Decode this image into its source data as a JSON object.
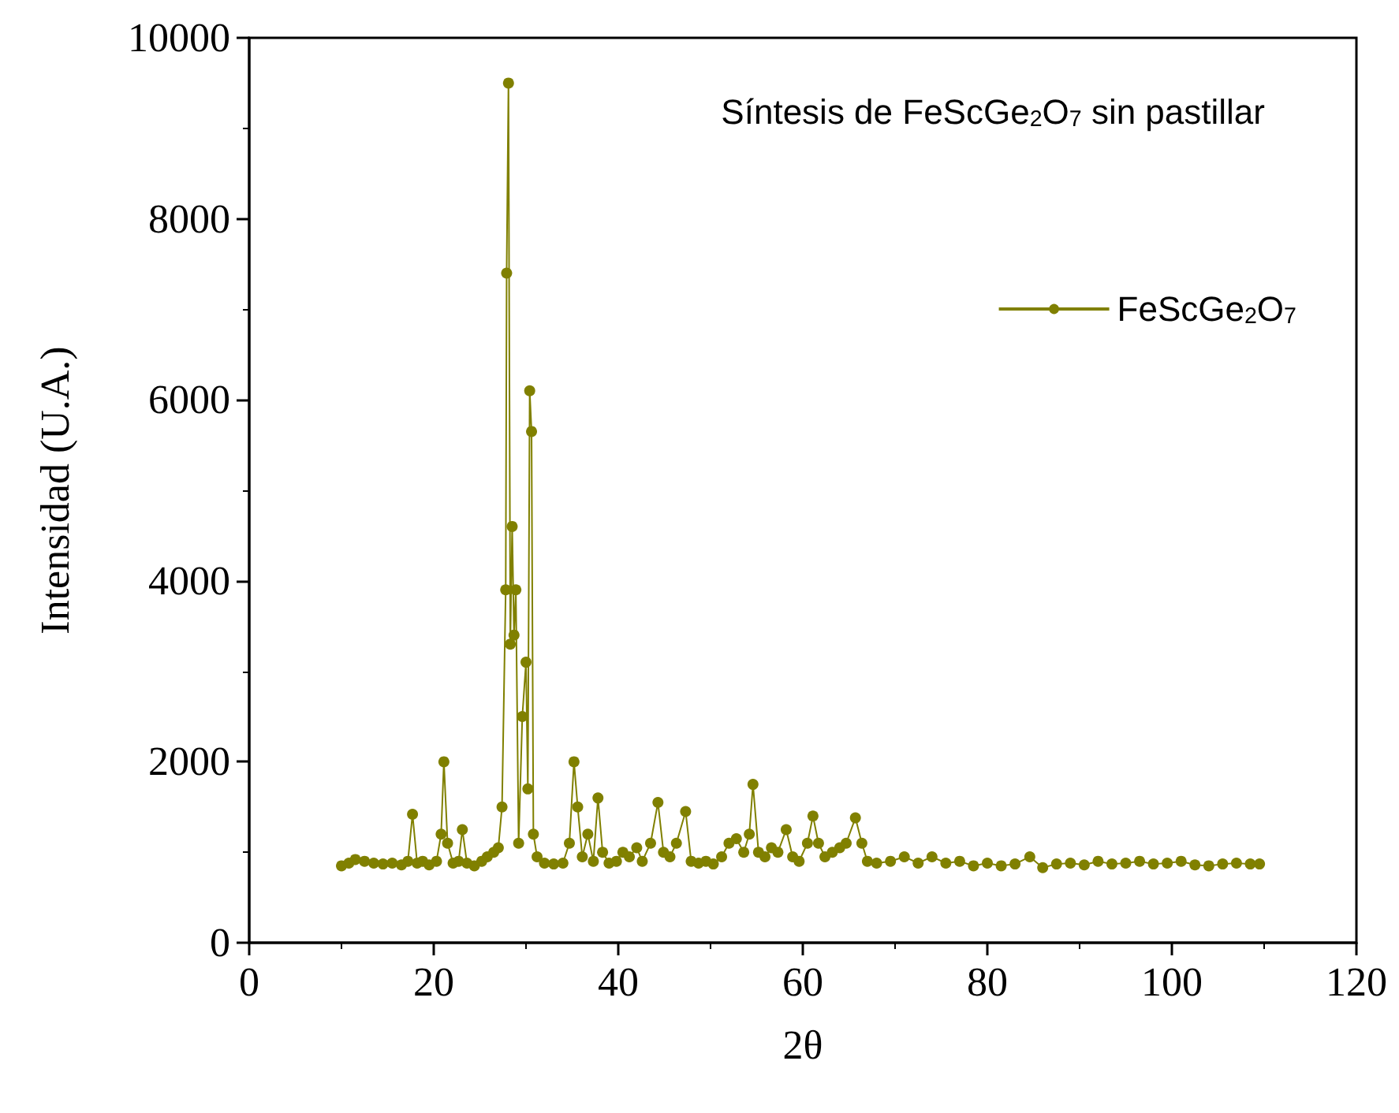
{
  "chart_data": {
    "type": "line",
    "xlabel": "2θ",
    "ylabel": "Intensidad (U.A.)",
    "annotations": [
      "Síntesis de FeScGe$_{2}$O$_{7}$ sin pastillar"
    ],
    "xlim": [
      0,
      120
    ],
    "xticks": [
      0,
      20,
      40,
      60,
      80,
      100,
      120
    ],
    "ylim": [
      0,
      10000
    ],
    "yticks": [
      0,
      2000,
      4000,
      6000,
      8000,
      10000
    ],
    "grid": false,
    "legend": "top right",
    "marker": "circle",
    "line_style": "solid",
    "x": [
      10,
      10.8,
      11.5,
      12.5,
      13.5,
      14.5,
      15.5,
      16.5,
      17.2,
      17.7,
      18.2,
      18.8,
      19.5,
      20.3,
      20.8,
      21.1,
      21.5,
      22.1,
      22.7,
      23.1,
      23.6,
      24.4,
      25.2,
      25.8,
      26.5,
      27.0,
      27.4,
      27.8,
      27.9,
      28.1,
      28.3,
      28.5,
      28.7,
      28.9,
      29.2,
      29.6,
      30.0,
      30.2,
      30.4,
      30.6,
      30.8,
      31.2,
      32,
      33,
      34,
      34.7,
      35.2,
      35.6,
      36.1,
      36.7,
      37.3,
      37.8,
      38.3,
      39,
      39.8,
      40.5,
      41.2,
      42,
      42.6,
      43.5,
      44.3,
      44.9,
      45.6,
      46.3,
      47.3,
      47.9,
      48.7,
      49.5,
      50.3,
      51.2,
      52,
      52.8,
      53.6,
      54.2,
      54.6,
      55.2,
      55.9,
      56.6,
      57.3,
      58.2,
      58.9,
      59.6,
      60.5,
      61.1,
      61.7,
      62.4,
      63.2,
      64,
      64.7,
      65.7,
      66.4,
      67,
      68,
      69.5,
      71,
      72.5,
      74,
      75.5,
      77,
      78.5,
      80,
      81.5,
      83,
      84.6,
      86,
      87.5,
      89,
      90.5,
      92,
      93.5,
      95,
      96.5,
      98,
      99.5,
      101,
      102.5,
      104,
      105.5,
      107,
      108.5,
      109.5
    ],
    "series": [
      {
        "name": "FeScGe$_{2}$O$_{7}$",
        "color": "#808000",
        "values": [
          850,
          880,
          920,
          900,
          880,
          870,
          880,
          860,
          900,
          1420,
          880,
          900,
          860,
          900,
          1200,
          2000,
          1100,
          880,
          900,
          1250,
          880,
          850,
          900,
          950,
          1000,
          1050,
          1500,
          3900,
          7400,
          9500,
          3300,
          4600,
          3400,
          3900,
          1100,
          2500,
          3100,
          1700,
          6100,
          5650,
          1200,
          950,
          880,
          870,
          880,
          1100,
          2000,
          1500,
          950,
          1200,
          900,
          1600,
          1000,
          880,
          900,
          1000,
          950,
          1050,
          900,
          1100,
          1550,
          1000,
          950,
          1100,
          1450,
          900,
          880,
          900,
          870,
          950,
          1100,
          1150,
          1000,
          1200,
          1750,
          1000,
          950,
          1050,
          1000,
          1250,
          950,
          900,
          1100,
          1400,
          1100,
          950,
          1000,
          1050,
          1100,
          1380,
          1100,
          900,
          880,
          900,
          950,
          880,
          950,
          880,
          900,
          850,
          880,
          850,
          870,
          950,
          830,
          870,
          880,
          860,
          900,
          870,
          880,
          900,
          870,
          880,
          900,
          860,
          850,
          870,
          880,
          870,
          870
        ]
      }
    ]
  }
}
